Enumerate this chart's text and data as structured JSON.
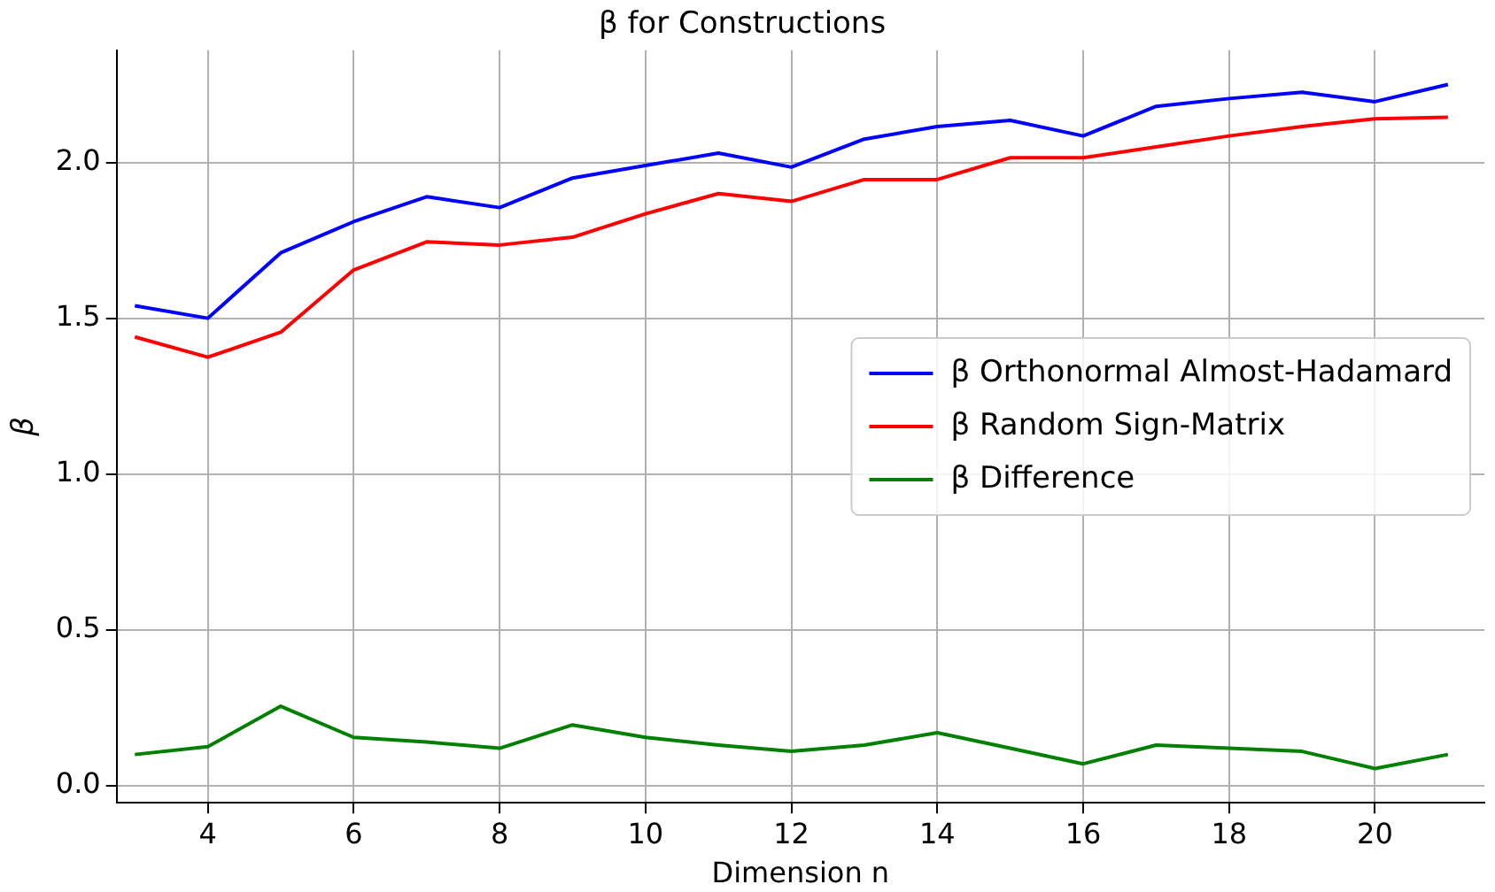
{
  "chart_data": {
    "type": "line",
    "title": "β for Constructions",
    "xlabel": "Dimension n",
    "ylabel": "β",
    "x": [
      3,
      4,
      5,
      6,
      7,
      8,
      9,
      10,
      11,
      12,
      13,
      14,
      15,
      16,
      17,
      18,
      19,
      20,
      21
    ],
    "series": [
      {
        "name": "β Orthonormal Almost-Hadamard",
        "color": "#0000ff",
        "values": [
          1.54,
          1.5,
          1.71,
          1.81,
          1.89,
          1.855,
          1.95,
          1.99,
          2.03,
          1.985,
          2.075,
          2.115,
          2.135,
          2.085,
          2.18,
          2.205,
          2.225,
          2.195,
          2.25
        ]
      },
      {
        "name": "β Random Sign-Matrix",
        "color": "#ff0000",
        "values": [
          1.44,
          1.375,
          1.455,
          1.655,
          1.745,
          1.735,
          1.76,
          1.835,
          1.9,
          1.875,
          1.945,
          1.945,
          2.015,
          2.015,
          2.05,
          2.085,
          2.115,
          2.14,
          2.145
        ]
      },
      {
        "name": "β Difference",
        "color": "#008000",
        "values": [
          0.1,
          0.125,
          0.255,
          0.155,
          0.14,
          0.12,
          0.195,
          0.155,
          0.13,
          0.11,
          0.13,
          0.17,
          0.12,
          0.07,
          0.13,
          0.12,
          0.11,
          0.055,
          0.1
        ]
      }
    ],
    "xlim": [
      2.75,
      21.5
    ],
    "xticks": [
      4,
      6,
      8,
      10,
      12,
      14,
      16,
      18,
      20
    ],
    "ylim": [
      -0.055,
      2.36
    ],
    "yticks": [
      {
        "value": 0,
        "label": "0.0"
      },
      0.5,
      {
        "value": 1,
        "label": "1.0"
      },
      1.5,
      {
        "value": 2,
        "label": "2.0"
      }
    ],
    "grid": true,
    "legend": "right",
    "marker": "none",
    "line_style": "solid"
  }
}
